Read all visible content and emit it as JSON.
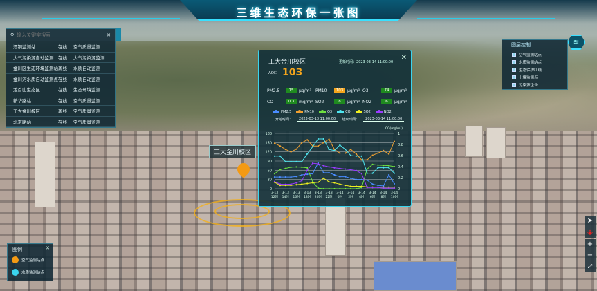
{
  "header": {
    "title": "三维生态环保一张图"
  },
  "site_list": {
    "search_placeholder": "输入关键字搜索",
    "items": [
      {
        "name": "酒钢监测站",
        "status": "在线",
        "type": "空气质量监测"
      },
      {
        "name": "大气污染源自动监测",
        "status": "在线",
        "type": "大气污染源监测"
      },
      {
        "name": "金川区生态环境监测站",
        "status": "离线",
        "type": "水质自动监测"
      },
      {
        "name": "金川河水质自动监测点",
        "status": "在线",
        "type": "水质自动监测"
      },
      {
        "name": "龙首山生态区",
        "status": "在线",
        "type": "生态环境监测"
      },
      {
        "name": "新华路站",
        "status": "在线",
        "type": "空气质量监测"
      },
      {
        "name": "工大金川校区",
        "status": "离线",
        "type": "空气质量监测"
      },
      {
        "name": "北京路站",
        "status": "在线",
        "type": "空气质量监测"
      }
    ]
  },
  "map": {
    "site_label": "工大金川校区"
  },
  "popup": {
    "title": "工大金川校区",
    "update_label": "更新时间：",
    "update_time": "2023-03-14 11:00:00",
    "aqi_label": "AQI：",
    "aqi": "103",
    "pollutants": [
      {
        "name": "PM2.5",
        "value": "15",
        "unit": "μg/m³",
        "color": "#1f8a1f"
      },
      {
        "name": "PM10",
        "value": "103",
        "unit": "μg/m³",
        "color": "#f5a51c"
      },
      {
        "name": "O3",
        "value": "74",
        "unit": "μg/m³",
        "color": "#1f8a1f"
      },
      {
        "name": "CO",
        "value": "0.3",
        "unit": "mg/m³",
        "color": "#1f8a1f"
      },
      {
        "name": "SO2",
        "value": "8",
        "unit": "μg/m³",
        "color": "#1f8a1f"
      },
      {
        "name": "NO2",
        "value": "6",
        "unit": "μg/m³",
        "color": "#1f8a1f"
      }
    ],
    "start_label": "开始时间：",
    "start_time": "2023-03-13 11:00:00",
    "end_label": "结束时间：",
    "end_time": "2023-03-14 11:00:00"
  },
  "chart_data": {
    "type": "line",
    "right_axis_label": "CO(mg/m³)",
    "ylim": [
      0,
      180
    ],
    "y2lim": [
      0,
      1
    ],
    "yticks": [
      0,
      30,
      60,
      90,
      120,
      150,
      180
    ],
    "y2ticks": [
      0,
      0.2,
      0.4,
      0.6,
      0.8,
      1
    ],
    "xtick_labels": [
      [
        "3-13",
        "12时"
      ],
      [
        "3-13",
        "14时"
      ],
      [
        "3-13",
        "16时"
      ],
      [
        "3-13",
        "18时"
      ],
      [
        "3-13",
        "20时"
      ],
      [
        "3-13",
        "22时"
      ],
      [
        "3-14",
        "0时"
      ],
      [
        "3-14",
        "2时"
      ],
      [
        "3-14",
        "4时"
      ],
      [
        "3-14",
        "6时"
      ],
      [
        "3-14",
        "8时"
      ],
      [
        "3-14",
        "10时"
      ]
    ],
    "series": [
      {
        "name": "PM2.5",
        "color": "#4a8cff",
        "axis": "left",
        "values": [
          38,
          38,
          38,
          38,
          40,
          45,
          47,
          49,
          84,
          52,
          52,
          45,
          39,
          39,
          34,
          30,
          30,
          28,
          15,
          11,
          9,
          45,
          16
        ]
      },
      {
        "name": "PM10",
        "color": "#f0a030",
        "axis": "left",
        "values": [
          148,
          139,
          128,
          120,
          129,
          150,
          159,
          139,
          139,
          150,
          161,
          128,
          116,
          116,
          128,
          113,
          94,
          94,
          109,
          116,
          124,
          113,
          154
        ]
      },
      {
        "name": "O3",
        "color": "#6fe040",
        "axis": "left",
        "values": [
          49,
          62,
          66,
          70,
          71,
          70,
          68,
          22,
          2,
          0,
          0,
          0,
          0,
          0,
          0,
          0,
          4,
          64,
          79,
          77,
          76,
          75,
          72
        ]
      },
      {
        "name": "CO",
        "color": "#4fe6f0",
        "axis": "right",
        "values": [
          0.59,
          0.59,
          0.49,
          0.49,
          0.49,
          0.49,
          0.63,
          0.76,
          0.9,
          0.9,
          0.71,
          0.69,
          0.79,
          0.71,
          0.6,
          0.59,
          0.59,
          0.28,
          0.28,
          0.38,
          0.38,
          0.38,
          0.28
        ]
      },
      {
        "name": "SO2",
        "color": "#f0f020",
        "axis": "left",
        "values": [
          21,
          11,
          11,
          11,
          13,
          15,
          17,
          19,
          21,
          34,
          22,
          19,
          15,
          11,
          8,
          8,
          8,
          6,
          5,
          5,
          5,
          5,
          5
        ]
      },
      {
        "name": "NO2",
        "color": "#9a3cff",
        "axis": "left",
        "values": [
          23,
          15,
          14,
          15,
          19,
          26,
          60,
          83,
          81,
          75,
          71,
          68,
          66,
          64,
          62,
          59,
          49,
          4,
          4,
          4,
          2,
          2,
          2
        ]
      }
    ]
  },
  "layers": {
    "title": "图层控制",
    "items": [
      "空气监测站点",
      "水质监测站点",
      "生态保护红线",
      "土壤监测点",
      "污染源企业"
    ]
  },
  "legend": {
    "title": "图例",
    "items": [
      {
        "label": "空气监测站点",
        "color": "#f39a14"
      },
      {
        "label": "水质监测站点",
        "color": "#3ad4ee"
      }
    ]
  }
}
